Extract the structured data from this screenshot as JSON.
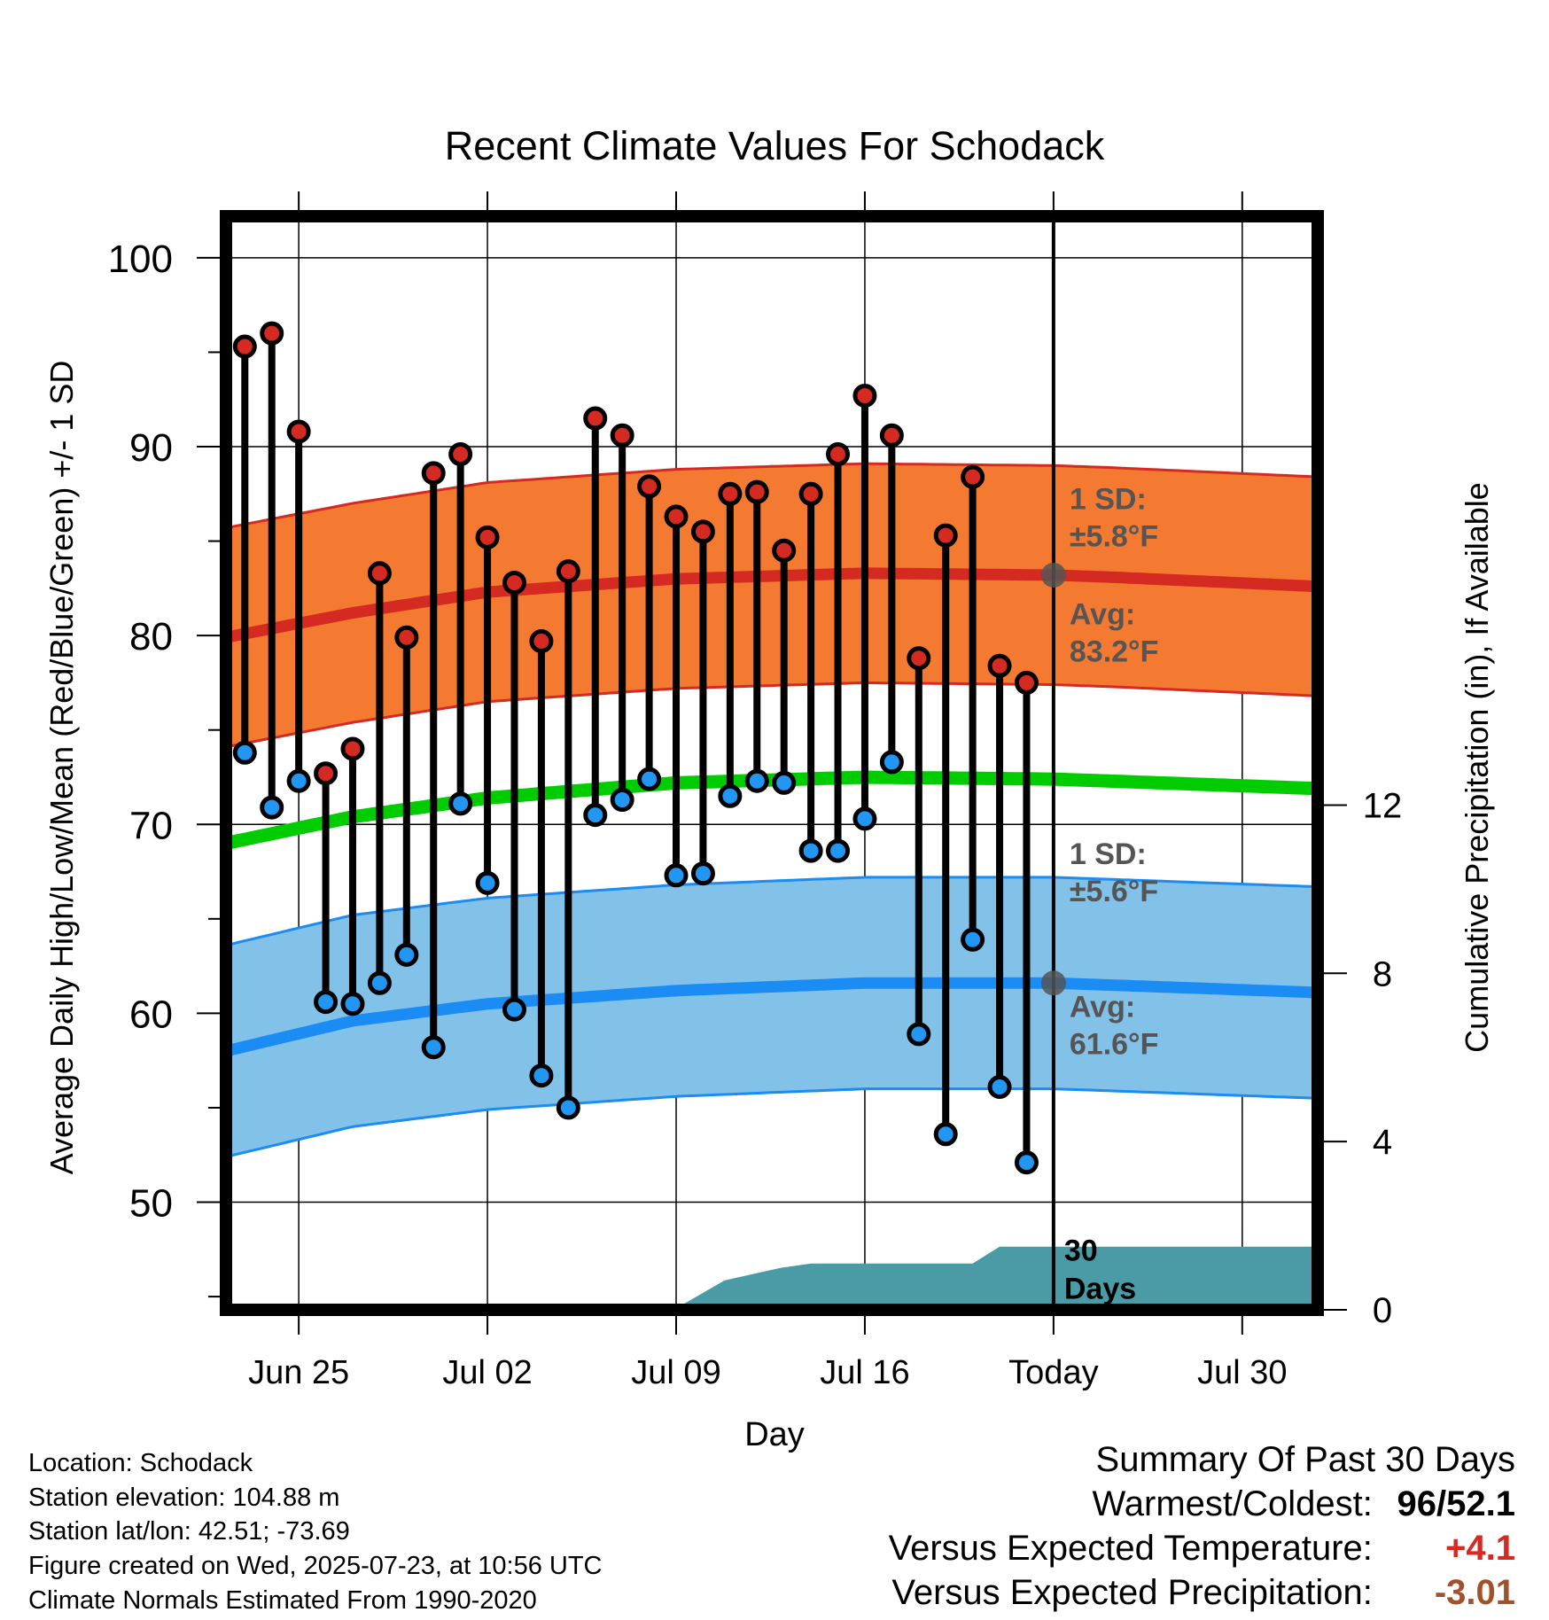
{
  "chart_data": {
    "type": "line",
    "title": "Recent Climate Values For Schodack",
    "xlabel": "Day",
    "ylabel": "Average Daily High/Low/Mean (Red/Blue/Green) +/- 1 SD",
    "y2label": "Cumulative Precipitation (in), If Available",
    "ylim": [
      44.3,
      102.2
    ],
    "y2lim": [
      0,
      26
    ],
    "yticks": [
      50,
      60,
      70,
      80,
      90,
      100
    ],
    "y2ticks": [
      0,
      4,
      8,
      12
    ],
    "xticks": [
      {
        "day": 0,
        "label": "Jun 25"
      },
      {
        "day": 7,
        "label": "Jul 02"
      },
      {
        "day": 14,
        "label": "Jul 09"
      },
      {
        "day": 21,
        "label": "Jul 16"
      },
      {
        "day": 28,
        "label": "Today"
      },
      {
        "day": 35,
        "label": "Jul 30"
      }
    ],
    "xlim": [
      -2.7,
      37.8
    ],
    "grid": true,
    "today_day": 28,
    "days": [
      -2,
      -1,
      0,
      1,
      2,
      3,
      4,
      5,
      6,
      7,
      8,
      9,
      10,
      11,
      12,
      13,
      14,
      15,
      16,
      17,
      18,
      19,
      20,
      21,
      22,
      23,
      24,
      25,
      26,
      27
    ],
    "observed_high": [
      95.3,
      96.0,
      90.8,
      72.7,
      74.0,
      83.3,
      79.9,
      88.6,
      89.6,
      85.2,
      82.8,
      79.7,
      83.4,
      91.5,
      90.6,
      87.9,
      86.3,
      85.5,
      87.5,
      87.6,
      84.5,
      87.5,
      89.6,
      92.7,
      90.6,
      78.8,
      85.3,
      88.4,
      78.4,
      77.5
    ],
    "observed_low": [
      73.8,
      70.9,
      72.3,
      60.6,
      60.5,
      61.6,
      63.1,
      58.2,
      71.1,
      66.9,
      60.2,
      56.7,
      55.0,
      70.5,
      71.3,
      72.4,
      67.3,
      67.4,
      71.5,
      72.3,
      72.2,
      68.6,
      68.6,
      70.3,
      73.3,
      58.9,
      53.6,
      63.9,
      56.1,
      52.1
    ],
    "normal_days": [
      -2.7,
      2,
      7,
      14,
      21,
      28,
      30,
      37.8
    ],
    "normal_high": [
      79.9,
      81.2,
      82.3,
      83.0,
      83.3,
      83.2,
      83.1,
      82.6
    ],
    "normal_low": [
      58.0,
      59.6,
      60.5,
      61.2,
      61.6,
      61.6,
      61.5,
      61.1
    ],
    "normal_mean": [
      69.0,
      70.4,
      71.4,
      72.2,
      72.5,
      72.4,
      72.3,
      71.9
    ],
    "high_sd": 5.8,
    "low_sd": 5.6,
    "precip_steps": [
      {
        "day": 13.9,
        "value": 0.0
      },
      {
        "day": 15.8,
        "value": 0.7
      },
      {
        "day": 17.9,
        "value": 1.0
      },
      {
        "day": 19.0,
        "value": 1.1
      },
      {
        "day": 21.0,
        "value": 1.1
      },
      {
        "day": 25.0,
        "value": 1.1
      },
      {
        "day": 26.0,
        "value": 1.5
      },
      {
        "day": 37.8,
        "value": 1.5
      }
    ],
    "annotations": {
      "high_sd": {
        "label": "1 SD:",
        "value": "±5.8",
        "unit": "°F"
      },
      "high_avg": {
        "label": "Avg:",
        "value": "83.2",
        "unit": "°F"
      },
      "low_sd": {
        "label": "1 SD:",
        "value": "±5.6",
        "unit": "°F"
      },
      "low_avg": {
        "label": "Avg:",
        "value": "61.6",
        "unit": "°F"
      },
      "window": {
        "line1": "30",
        "line2": "Days"
      }
    },
    "colors": {
      "high_band": "#f47a31",
      "high_line": "#d42a22",
      "low_band": "#82c1e8",
      "low_line": "#1a8cf4",
      "mean_line": "#00cc00",
      "precip": "#4a9ba5",
      "high_marker": "#d42a22",
      "low_marker": "#2196f3",
      "annotation": "#555555"
    }
  },
  "footer": {
    "location": "Location: Schodack",
    "elevation": "Station elevation: 104.88 m",
    "latlon": "Station lat/lon: 42.51; -73.69",
    "created": "Figure created on Wed, 2025-07-23, at 10:56 UTC",
    "normals": "Climate Normals Estimated From 1990-2020"
  },
  "summary": {
    "title": "Summary Of Past 30 Days",
    "warmest_label": "Warmest/Coldest:",
    "warmest_value": "96",
    "coldest_value": "52.1",
    "temp_label": "Versus Expected Temperature:",
    "temp_value": "+4.1",
    "temp_color": "#d42a22",
    "precip_label": "Versus Expected Precipitation:",
    "precip_value": "-3.01",
    "precip_color": "#a0522d"
  }
}
